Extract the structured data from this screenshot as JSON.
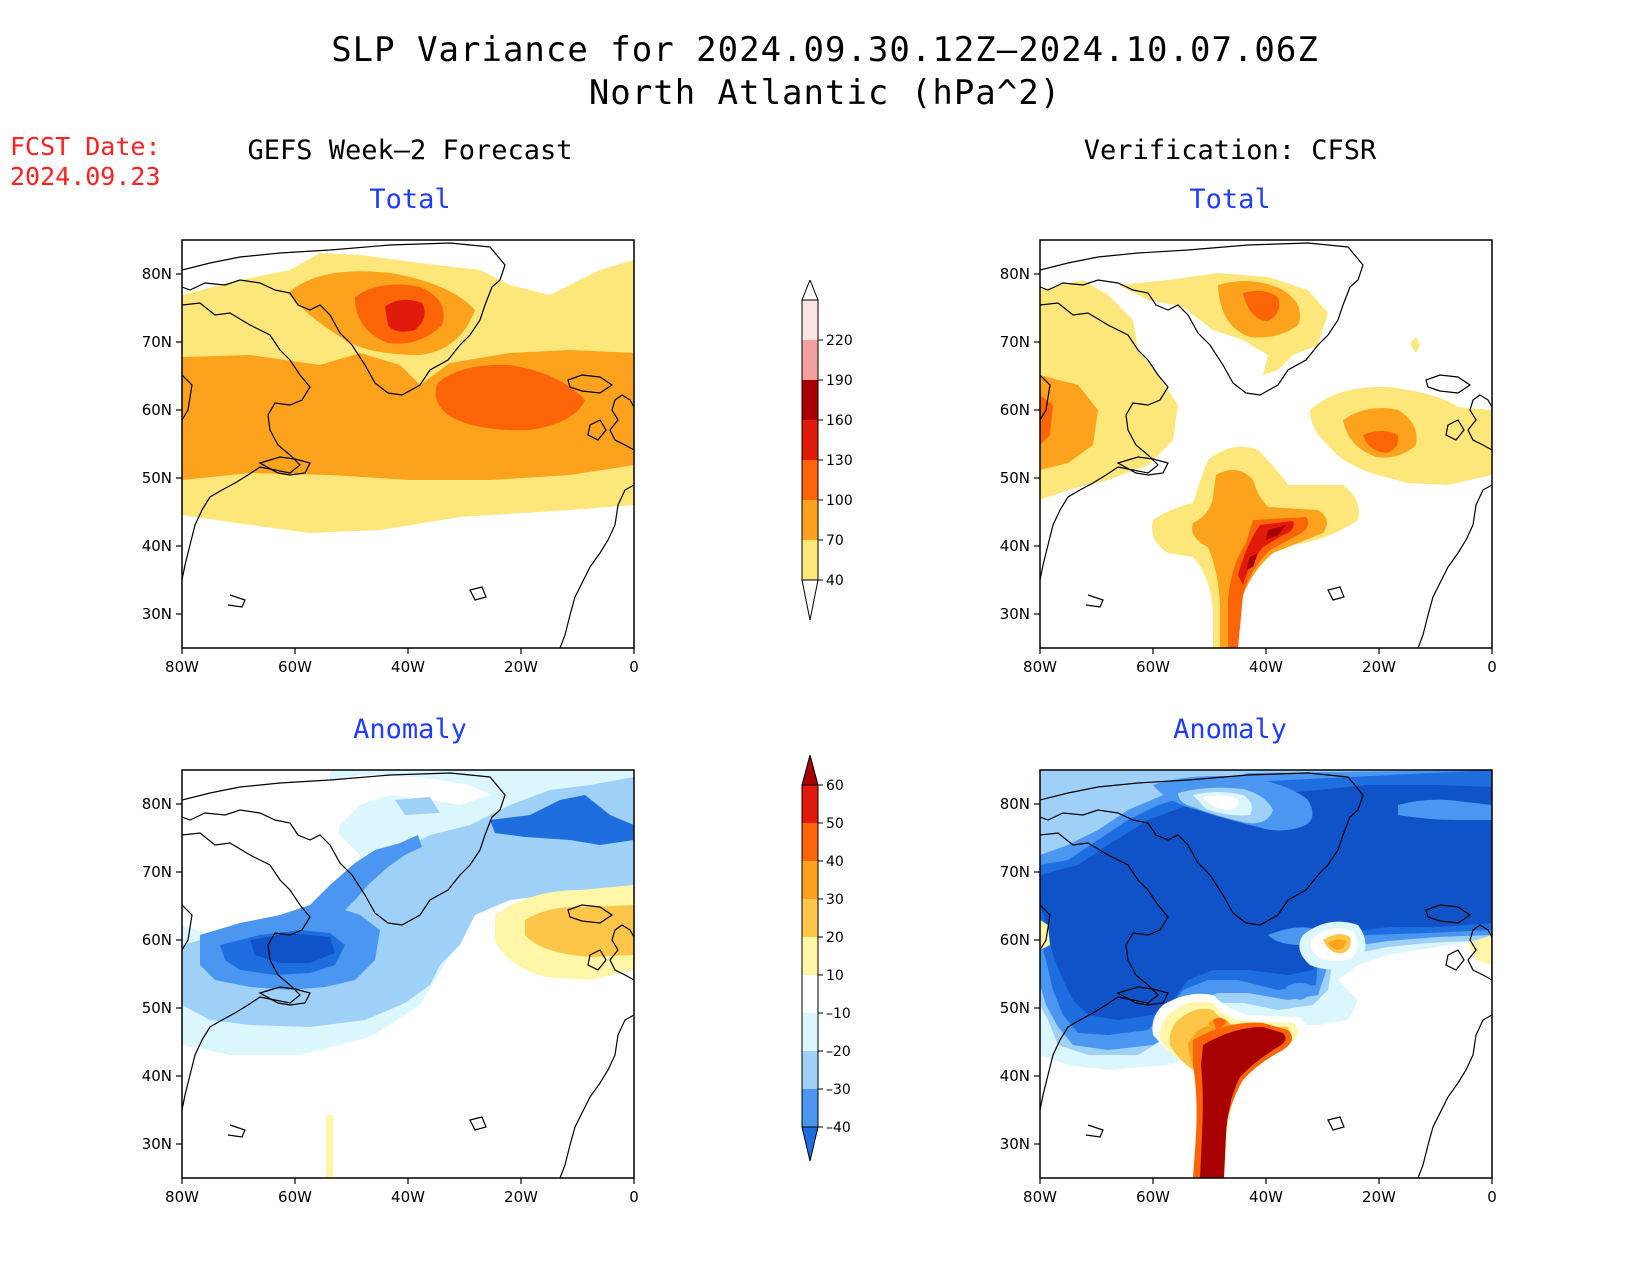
{
  "title": "SLP Variance for 2024.09.30.12Z–2024.10.07.06Z",
  "subtitle": "North Atlantic (hPa^2)",
  "fcst_label": "FCST Date:",
  "fcst_date": "2024.09.23",
  "left_heading": "GEFS Week–2 Forecast",
  "right_heading": "Verification: CFSR",
  "panel_labels": {
    "gefs_total": "Total",
    "gefs_anomaly": "Anomaly",
    "cfsr_total": "Total",
    "cfsr_anomaly": "Anomaly"
  },
  "axes": {
    "x_ticks": [
      "80W",
      "60W",
      "40W",
      "20W",
      "0"
    ],
    "y_ticks": [
      "80N",
      "70N",
      "60N",
      "50N",
      "40N",
      "30N"
    ],
    "lon_range": [
      -80,
      0
    ],
    "lat_range": [
      25,
      85
    ]
  },
  "total_colorbar": {
    "levels": [
      "40",
      "70",
      "100",
      "130",
      "160",
      "190",
      "220"
    ],
    "colors": [
      "#fde67a",
      "#fda21c",
      "#fb6508",
      "#e11a0b",
      "#a80000",
      "#f4a0a0",
      "#fbe4e4"
    ]
  },
  "anomaly_colorbar": {
    "levels": [
      "–40",
      "–30",
      "–20",
      "–10",
      "10",
      "20",
      "30",
      "40",
      "50",
      "60"
    ],
    "colors": [
      "#1e6ee0",
      "#4a96f0",
      "#9fd0f8",
      "#dcf6fe",
      "#ffffff",
      "#fff6a8",
      "#fec648",
      "#fda21c",
      "#fb6508",
      "#e11a0b",
      "#a80000"
    ]
  },
  "colors": {
    "light_yellow": "#fde67a",
    "orange": "#fda21c",
    "dark_orange": "#fb6508",
    "red": "#e11a0b",
    "dark_red": "#a80000",
    "pale_blue": "#dcf6fe",
    "light_blue": "#9fd0f8",
    "mid_blue": "#4a96f0",
    "blue": "#1e6ee0",
    "deep_blue": "#1053c8"
  }
}
